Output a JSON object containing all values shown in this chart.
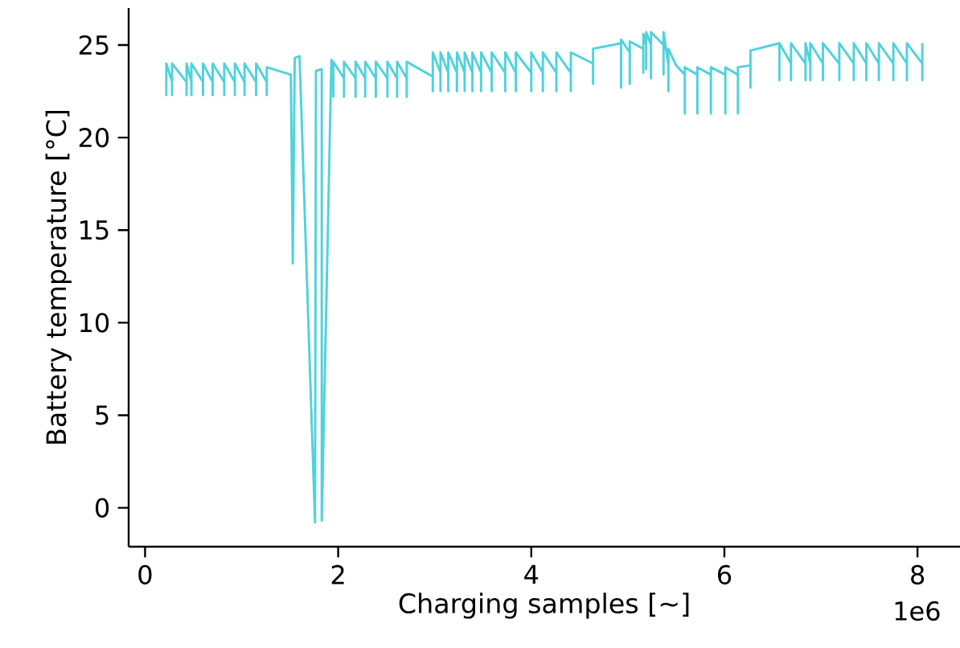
{
  "chart_data": {
    "type": "line",
    "xlabel": "Charging samples [~]",
    "ylabel": "Battery temperature [°C]",
    "annotations": [
      "1e6"
    ],
    "xlim": [
      -0.17,
      8.44
    ],
    "ylim": [
      -2.1,
      27.0
    ],
    "xticks": [
      0,
      2,
      4,
      6,
      8
    ],
    "yticks": [
      0,
      5,
      10,
      15,
      20,
      25
    ],
    "grid": false,
    "marker": "none",
    "line_style": "solid",
    "series": [
      {
        "color": "#50d2dc",
        "x": [
          0.22,
          0.22,
          0.22,
          0.28,
          0.28,
          0.28,
          0.43,
          0.43,
          0.43,
          0.48,
          0.48,
          0.48,
          0.6,
          0.6,
          0.6,
          0.7,
          0.7,
          0.7,
          0.82,
          0.82,
          0.82,
          0.93,
          0.93,
          0.93,
          1.03,
          1.03,
          1.03,
          1.15,
          1.15,
          1.15,
          1.26,
          1.26,
          1.26,
          1.51,
          1.53,
          1.55,
          1.6,
          1.76,
          1.77,
          1.83,
          1.83,
          1.93,
          1.95,
          1.95,
          1.95,
          2.06,
          2.06,
          2.06,
          2.18,
          2.18,
          2.18,
          2.28,
          2.28,
          2.28,
          2.39,
          2.39,
          2.39,
          2.51,
          2.51,
          2.51,
          2.61,
          2.61,
          2.61,
          2.71,
          2.71,
          2.71,
          2.98,
          2.98,
          2.98,
          3.06,
          3.06,
          3.06,
          3.14,
          3.14,
          3.14,
          3.23,
          3.23,
          3.23,
          3.31,
          3.31,
          3.31,
          3.39,
          3.39,
          3.39,
          3.48,
          3.48,
          3.48,
          3.59,
          3.59,
          3.59,
          3.73,
          3.73,
          3.73,
          3.84,
          3.84,
          3.84,
          4.0,
          4.0,
          4.0,
          4.12,
          4.12,
          4.12,
          4.26,
          4.26,
          4.26,
          4.41,
          4.41,
          4.41,
          4.64,
          4.64,
          4.64,
          4.93,
          4.93,
          4.93,
          5.02,
          5.02,
          5.02,
          5.16,
          5.16,
          5.16,
          5.19,
          5.19,
          5.19,
          5.24,
          5.24,
          5.24,
          5.37,
          5.37,
          5.37,
          5.42,
          5.42,
          5.42,
          5.5,
          5.59,
          5.59,
          5.59,
          5.72,
          5.72,
          5.72,
          5.86,
          5.86,
          5.86,
          6.01,
          6.01,
          6.01,
          6.14,
          6.14,
          6.14,
          6.27,
          6.27,
          6.27,
          6.57,
          6.57,
          6.57,
          6.69,
          6.69,
          6.69,
          6.84,
          6.84,
          6.84,
          6.89,
          6.89,
          6.89,
          7.02,
          7.02,
          7.02,
          7.19,
          7.19,
          7.19,
          7.34,
          7.34,
          7.34,
          7.47,
          7.47,
          7.47,
          7.6,
          7.6,
          7.6,
          7.75,
          7.75,
          7.75,
          7.89,
          7.89,
          7.89,
          8.05,
          8.05,
          8.05
        ],
        "values": [
          23.0,
          22.3,
          24.0,
          23.0,
          22.3,
          24.0,
          23.0,
          22.3,
          24.0,
          23.0,
          22.3,
          24.0,
          23.0,
          22.3,
          24.0,
          23.0,
          22.3,
          24.0,
          23.0,
          22.3,
          24.0,
          23.0,
          22.3,
          24.0,
          23.0,
          22.3,
          24.0,
          23.0,
          22.3,
          24.0,
          23.0,
          22.3,
          23.8,
          23.4,
          13.2,
          24.3,
          24.4,
          -0.8,
          23.6,
          23.7,
          -0.7,
          24.2,
          23.2,
          22.2,
          24.1,
          23.2,
          22.2,
          24.1,
          23.2,
          22.2,
          24.1,
          23.2,
          22.2,
          24.1,
          23.2,
          22.2,
          24.1,
          23.2,
          22.2,
          24.1,
          23.2,
          22.2,
          24.1,
          23.2,
          22.2,
          24.1,
          23.3,
          22.5,
          24.6,
          23.5,
          22.5,
          24.6,
          23.5,
          22.5,
          24.6,
          23.5,
          22.5,
          24.6,
          23.5,
          22.5,
          24.6,
          23.5,
          22.5,
          24.6,
          23.5,
          22.5,
          24.6,
          23.5,
          22.5,
          24.6,
          23.5,
          22.5,
          24.6,
          23.5,
          22.5,
          24.6,
          23.5,
          22.5,
          24.6,
          23.5,
          22.5,
          24.6,
          23.5,
          22.5,
          24.6,
          23.5,
          22.5,
          24.6,
          24.0,
          22.9,
          24.8,
          25.1,
          22.7,
          25.3,
          24.6,
          22.9,
          25.2,
          24.8,
          23.5,
          25.6,
          25.0,
          23.7,
          25.7,
          25.0,
          23.2,
          25.7,
          25.0,
          23.4,
          25.7,
          23.9,
          22.5,
          24.8,
          23.9,
          23.4,
          21.3,
          23.8,
          23.4,
          21.3,
          23.8,
          23.4,
          21.3,
          23.8,
          23.4,
          21.3,
          23.8,
          23.4,
          21.3,
          23.8,
          23.9,
          22.7,
          24.7,
          25.1,
          23.1,
          25.1,
          24.0,
          23.1,
          25.1,
          24.0,
          23.1,
          25.1,
          24.0,
          23.1,
          25.1,
          24.0,
          23.1,
          25.1,
          24.0,
          23.1,
          25.1,
          24.0,
          23.1,
          25.1,
          24.0,
          23.1,
          25.1,
          24.0,
          23.1,
          25.1,
          24.0,
          23.1,
          25.1,
          24.0,
          23.1,
          25.1,
          24.0,
          23.1,
          25.1
        ]
      }
    ]
  }
}
